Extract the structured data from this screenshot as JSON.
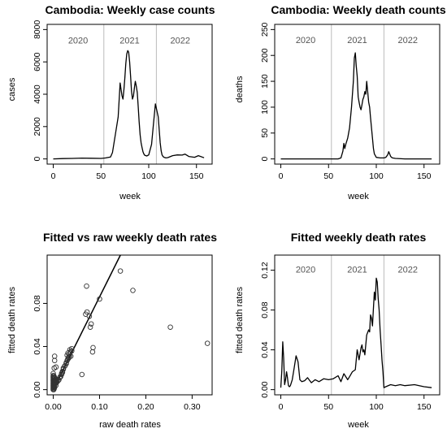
{
  "chart_data": [
    {
      "type": "line",
      "title": "Cambodia: Weekly case counts",
      "xlabel": "week",
      "ylabel": "cases",
      "xlim": [
        0,
        160
      ],
      "ylim": [
        0,
        8000
      ],
      "xticks": [
        "0",
        "50",
        "100",
        "150"
      ],
      "yticks": [
        "0",
        "2000",
        "4000",
        "6000",
        "8000"
      ],
      "vlines": [
        53,
        108
      ],
      "year_labels": [
        "2020",
        "2021",
        "2022"
      ],
      "year_label_x": [
        26,
        80,
        133
      ],
      "year_label_y": 7350,
      "line_color": "#000000",
      "vline_color": "#bbbbbb",
      "x": [
        0,
        10,
        20,
        30,
        40,
        50,
        55,
        60,
        62,
        65,
        68,
        70,
        72,
        73,
        74,
        75,
        76,
        77,
        78,
        79,
        80,
        81,
        82,
        83,
        84,
        85,
        86,
        87,
        88,
        89,
        90,
        91,
        92,
        93,
        94,
        95,
        96,
        97,
        98,
        100,
        103,
        105,
        107,
        110,
        112,
        113,
        114,
        115,
        116,
        117,
        118,
        120,
        125,
        130,
        135,
        138,
        142,
        148,
        152,
        158
      ],
      "y": [
        0,
        20,
        30,
        50,
        40,
        30,
        60,
        120,
        400,
        1500,
        2600,
        4700,
        3900,
        3700,
        4300,
        5000,
        5900,
        6500,
        6700,
        6600,
        6000,
        5100,
        4200,
        3700,
        3900,
        4400,
        4800,
        4500,
        4100,
        3200,
        2300,
        1500,
        1000,
        700,
        450,
        300,
        220,
        200,
        180,
        250,
        900,
        2200,
        3400,
        2600,
        1000,
        500,
        250,
        150,
        100,
        80,
        60,
        80,
        200,
        250,
        240,
        300,
        150,
        100,
        200,
        70
      ]
    },
    {
      "type": "line",
      "title": "Cambodia: Weekly death counts",
      "xlabel": "week",
      "ylabel": "deaths",
      "xlim": [
        0,
        160
      ],
      "ylim": [
        0,
        250
      ],
      "xticks": [
        "0",
        "50",
        "100",
        "150"
      ],
      "yticks": [
        "0",
        "50",
        "100",
        "150",
        "200",
        "250"
      ],
      "vlines": [
        53,
        108
      ],
      "year_labels": [
        "2020",
        "2021",
        "2022"
      ],
      "year_label_x": [
        26,
        80,
        133
      ],
      "year_label_y": 230,
      "line_color": "#000000",
      "vline_color": "#bbbbbb",
      "x": [
        0,
        10,
        20,
        30,
        40,
        50,
        55,
        60,
        63,
        65,
        66,
        67,
        68,
        70,
        72,
        74,
        76,
        77,
        78,
        79,
        80,
        81,
        82,
        83,
        84,
        85,
        86,
        87,
        88,
        89,
        90,
        91,
        92,
        93,
        94,
        95,
        96,
        97,
        98,
        100,
        104,
        108,
        110,
        112,
        113,
        114,
        115,
        116,
        117,
        120,
        130,
        140,
        150,
        158
      ],
      "y": [
        0,
        0,
        0,
        0,
        0,
        0,
        0,
        0,
        2,
        15,
        30,
        20,
        28,
        40,
        60,
        100,
        150,
        195,
        205,
        180,
        160,
        120,
        110,
        100,
        95,
        105,
        115,
        120,
        130,
        125,
        150,
        130,
        110,
        100,
        80,
        60,
        40,
        20,
        10,
        3,
        2,
        2,
        3,
        8,
        14,
        10,
        5,
        3,
        2,
        1,
        0,
        0,
        0,
        0
      ]
    },
    {
      "type": "scatter",
      "title": "Fitted vs raw weekly death rates",
      "xlabel": "raw death rates",
      "ylabel": "fitted death rates",
      "xlim": [
        0,
        0.33
      ],
      "ylim": [
        0,
        0.12
      ],
      "xticks": [
        "0.00",
        "0.10",
        "0.20",
        "0.30"
      ],
      "yticks": [
        "0.00",
        "0.04",
        "0.08"
      ],
      "marker": "open-circle",
      "ref_line": {
        "slope": 0.86,
        "intercept": 0
      },
      "points": [
        [
          0.0,
          0.0
        ],
        [
          0.0,
          0.001
        ],
        [
          0.0,
          0.002
        ],
        [
          0.0,
          0.003
        ],
        [
          0.0,
          0.004
        ],
        [
          0.0,
          0.005
        ],
        [
          0.0,
          0.006
        ],
        [
          0.0,
          0.007
        ],
        [
          0.0,
          0.008
        ],
        [
          0.0,
          0.009
        ],
        [
          0.0,
          0.01
        ],
        [
          0.0,
          0.011
        ],
        [
          0.0,
          0.012
        ],
        [
          0.0,
          0.013
        ],
        [
          0.0,
          0.015
        ],
        [
          0.001,
          0.0
        ],
        [
          0.001,
          0.002
        ],
        [
          0.001,
          0.004
        ],
        [
          0.001,
          0.006
        ],
        [
          0.001,
          0.008
        ],
        [
          0.001,
          0.01
        ],
        [
          0.001,
          0.013
        ],
        [
          0.002,
          0.001
        ],
        [
          0.002,
          0.003
        ],
        [
          0.002,
          0.005
        ],
        [
          0.002,
          0.007
        ],
        [
          0.002,
          0.009
        ],
        [
          0.002,
          0.012
        ],
        [
          0.003,
          0.002
        ],
        [
          0.003,
          0.004
        ],
        [
          0.003,
          0.006
        ],
        [
          0.003,
          0.009
        ],
        [
          0.003,
          0.011
        ],
        [
          0.004,
          0.005
        ],
        [
          0.004,
          0.008
        ],
        [
          0.004,
          0.01
        ],
        [
          0.005,
          0.006
        ],
        [
          0.005,
          0.009
        ],
        [
          0.006,
          0.004
        ],
        [
          0.006,
          0.007
        ],
        [
          0.007,
          0.008
        ],
        [
          0.008,
          0.007
        ],
        [
          0.01,
          0.008
        ],
        [
          0.012,
          0.009
        ],
        [
          0.014,
          0.011
        ],
        [
          0.016,
          0.012
        ],
        [
          0.018,
          0.014
        ],
        [
          0.02,
          0.016
        ],
        [
          0.022,
          0.019
        ],
        [
          0.025,
          0.022
        ],
        [
          0.028,
          0.025
        ],
        [
          0.031,
          0.028
        ],
        [
          0.033,
          0.03
        ],
        [
          0.035,
          0.033
        ],
        [
          0.038,
          0.031
        ],
        [
          0.002,
          0.02
        ],
        [
          0.003,
          0.027
        ],
        [
          0.003,
          0.031
        ],
        [
          0.006,
          0.021
        ],
        [
          0.015,
          0.012
        ],
        [
          0.018,
          0.015
        ],
        [
          0.02,
          0.017
        ],
        [
          0.022,
          0.02
        ],
        [
          0.025,
          0.022
        ],
        [
          0.028,
          0.024
        ],
        [
          0.03,
          0.027
        ],
        [
          0.033,
          0.029
        ],
        [
          0.035,
          0.031
        ],
        [
          0.037,
          0.035
        ],
        [
          0.04,
          0.036
        ],
        [
          0.032,
          0.034
        ],
        [
          0.036,
          0.037
        ],
        [
          0.03,
          0.032
        ],
        [
          0.025,
          0.022
        ],
        [
          0.04,
          0.038
        ],
        [
          0.062,
          0.014
        ],
        [
          0.07,
          0.07
        ],
        [
          0.072,
          0.096
        ],
        [
          0.073,
          0.072
        ],
        [
          0.078,
          0.068
        ],
        [
          0.08,
          0.058
        ],
        [
          0.082,
          0.061
        ],
        [
          0.085,
          0.035
        ],
        [
          0.086,
          0.039
        ],
        [
          0.1,
          0.084
        ],
        [
          0.145,
          0.11
        ],
        [
          0.172,
          0.092
        ],
        [
          0.253,
          0.058
        ],
        [
          0.333,
          0.043
        ]
      ]
    },
    {
      "type": "line",
      "title": "Fitted weekly death rates",
      "xlabel": "week",
      "ylabel": "fitted death rates",
      "xlim": [
        0,
        160
      ],
      "ylim": [
        0,
        0.13
      ],
      "xticks": [
        "0",
        "50",
        "100",
        "150"
      ],
      "yticks": [
        "0.00",
        "0.04",
        "0.08",
        "0.12"
      ],
      "vlines": [
        53,
        108
      ],
      "year_labels": [
        "2020",
        "2021",
        "2022"
      ],
      "year_label_x": [
        26,
        80,
        133
      ],
      "year_label_y": 0.121,
      "line_color": "#000000",
      "vline_color": "#bbbbbb",
      "x": [
        0,
        1,
        2,
        3,
        4,
        5,
        6,
        7,
        8,
        9,
        10,
        12,
        14,
        16,
        18,
        20,
        22,
        25,
        28,
        32,
        36,
        40,
        45,
        50,
        55,
        60,
        63,
        66,
        70,
        72,
        75,
        78,
        80,
        82,
        84,
        85,
        86,
        87,
        88,
        90,
        92,
        93,
        94,
        95,
        96,
        97,
        98,
        99,
        100,
        101,
        102,
        103,
        104,
        105,
        106,
        107,
        108,
        110,
        115,
        120,
        125,
        130,
        140,
        150,
        158
      ],
      "y": [
        0.002,
        0.018,
        0.048,
        0.032,
        0.005,
        0.01,
        0.018,
        0.012,
        0.004,
        0.003,
        0.004,
        0.01,
        0.022,
        0.034,
        0.028,
        0.01,
        0.008,
        0.009,
        0.012,
        0.007,
        0.01,
        0.008,
        0.011,
        0.01,
        0.011,
        0.014,
        0.008,
        0.016,
        0.01,
        0.013,
        0.018,
        0.02,
        0.04,
        0.03,
        0.042,
        0.045,
        0.038,
        0.04,
        0.035,
        0.055,
        0.06,
        0.058,
        0.075,
        0.072,
        0.064,
        0.082,
        0.098,
        0.09,
        0.112,
        0.108,
        0.092,
        0.08,
        0.06,
        0.045,
        0.03,
        0.018,
        0.002,
        0.003,
        0.005,
        0.004,
        0.005,
        0.004,
        0.005,
        0.003,
        0.002
      ]
    }
  ]
}
